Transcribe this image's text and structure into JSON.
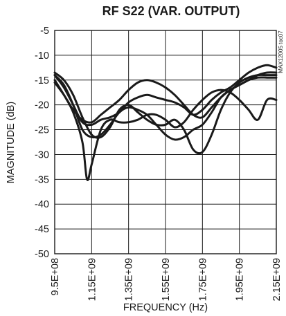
{
  "chart_data": {
    "type": "line",
    "title": "RF S22 (VAR. OUTPUT)",
    "xlabel": "FREQUENCY (Hz)",
    "ylabel": "MAGNITUDE (dB)",
    "watermark": "MAX12005 toc07",
    "xlim": [
      950000000,
      2150000000
    ],
    "ylim": [
      -50,
      -5
    ],
    "x_ticks": [
      950000000,
      1150000000,
      1350000000,
      1550000000,
      1750000000,
      1950000000,
      2150000000
    ],
    "x_tick_labels": [
      "9.5E+08",
      "1.15E+09",
      "1.35E+09",
      "1.55E+09",
      "1.75E+09",
      "1.95E+09",
      "2.15E+09"
    ],
    "y_ticks": [
      -5,
      -10,
      -15,
      -20,
      -25,
      -30,
      -35,
      -40,
      -45,
      -50
    ],
    "y_tick_labels": [
      "-5",
      "-10",
      "-15",
      "-20",
      "-25",
      "-30",
      "-35",
      "-40",
      "-45",
      "-50"
    ],
    "grid": true,
    "series": [
      {
        "x": [
          950000000,
          1000000000,
          1050000000,
          1100000000,
          1150000000,
          1200000000,
          1250000000,
          1300000000,
          1350000000,
          1400000000,
          1450000000,
          1500000000,
          1550000000,
          1600000000,
          1650000000,
          1700000000,
          1750000000,
          1800000000,
          1850000000,
          1900000000,
          1950000000,
          2000000000,
          2050000000,
          2100000000,
          2150000000
        ],
        "values": [
          -15.5,
          -18,
          -21,
          -23,
          -23.5,
          -22,
          -20.5,
          -19,
          -17,
          -15.5,
          -15,
          -15.5,
          -16.5,
          -18,
          -20,
          -22,
          -22.5,
          -20.5,
          -18.5,
          -17,
          -16,
          -15,
          -14,
          -13.5,
          -13.5
        ]
      },
      {
        "x": [
          950000000,
          1000000000,
          1050000000,
          1100000000,
          1150000000,
          1200000000,
          1250000000,
          1300000000,
          1350000000,
          1400000000,
          1450000000,
          1500000000,
          1550000000,
          1600000000,
          1650000000,
          1700000000,
          1750000000,
          1800000000,
          1850000000,
          1900000000,
          1950000000,
          2000000000,
          2050000000,
          2100000000,
          2150000000
        ],
        "values": [
          -13.5,
          -15,
          -18,
          -22.5,
          -26,
          -26.5,
          -24.5,
          -21,
          -20,
          -21.5,
          -23,
          -24,
          -24,
          -23,
          -25,
          -29,
          -29.5,
          -26,
          -21,
          -17.5,
          -15.5,
          -14.5,
          -14,
          -14,
          -14
        ]
      },
      {
        "x": [
          950000000,
          1000000000,
          1050000000,
          1100000000,
          1150000000,
          1200000000,
          1250000000,
          1300000000,
          1350000000,
          1400000000,
          1450000000,
          1500000000,
          1550000000,
          1600000000,
          1650000000,
          1700000000,
          1750000000,
          1800000000,
          1850000000,
          1900000000,
          1950000000,
          2000000000,
          2050000000,
          2100000000,
          2150000000
        ],
        "values": [
          -14,
          -16,
          -20,
          -25,
          -26.5,
          -26,
          -24,
          -21.5,
          -20.5,
          -21,
          -22,
          -24,
          -26,
          -27,
          -26.5,
          -25,
          -24,
          -21.5,
          -18.5,
          -17,
          -16,
          -15,
          -14.5,
          -14.5,
          -14.5
        ]
      },
      {
        "x": [
          950000000,
          1000000000,
          1050000000,
          1100000000,
          1125000000,
          1150000000,
          1200000000,
          1250000000,
          1300000000,
          1350000000,
          1400000000,
          1450000000,
          1500000000,
          1550000000,
          1600000000,
          1650000000,
          1700000000,
          1750000000,
          1800000000,
          1850000000,
          1900000000,
          1950000000,
          2000000000,
          2050000000,
          2100000000,
          2150000000
        ],
        "values": [
          -15,
          -18,
          -21.5,
          -27.5,
          -35,
          -32,
          -25,
          -23,
          -23.5,
          -23.5,
          -23,
          -22,
          -22,
          -23,
          -24.5,
          -23.5,
          -21,
          -19,
          -17.5,
          -17,
          -17.5,
          -19,
          -21,
          -23,
          -19,
          -19
        ]
      },
      {
        "x": [
          950000000,
          1000000000,
          1050000000,
          1100000000,
          1150000000,
          1200000000,
          1250000000,
          1300000000,
          1350000000,
          1400000000,
          1450000000,
          1500000000,
          1550000000,
          1600000000,
          1650000000,
          1700000000,
          1750000000,
          1800000000,
          1850000000,
          1900000000,
          1950000000,
          2000000000,
          2050000000,
          2100000000,
          2150000000
        ],
        "values": [
          -14,
          -16.5,
          -20,
          -23.5,
          -24,
          -23,
          -22.5,
          -21.5,
          -19.5,
          -18.5,
          -18,
          -18.5,
          -19,
          -19.5,
          -20.5,
          -22,
          -21,
          -19,
          -17.5,
          -16.5,
          -15,
          -13.5,
          -12.5,
          -12,
          -12.5
        ]
      }
    ]
  }
}
